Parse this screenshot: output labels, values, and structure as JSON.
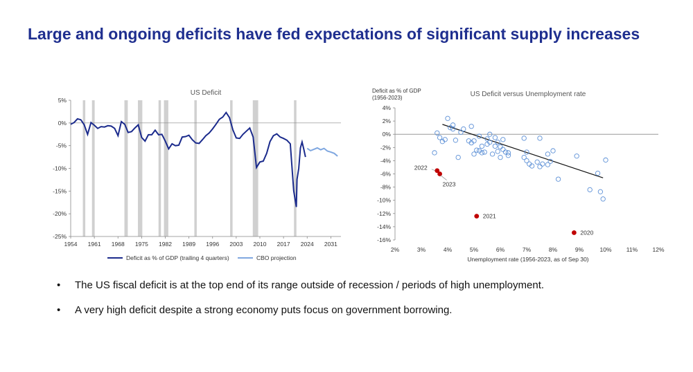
{
  "slide": {
    "title": "Large and ongoing deficits have fed expectations of significant supply increases",
    "bullets": [
      "The US fiscal deficit is at the top end of its range outside of recession / periods of high unemployment.",
      "A very high deficit despite a strong economy puts focus on government borrowing."
    ],
    "bullet_glyph": "•"
  },
  "colors": {
    "title": "#1f2f8f",
    "deficit": "#1a2a8c",
    "projection": "#7fa7e0",
    "recession": "#d0d0d0",
    "scatter": "#5b8fd6",
    "highlight": "#c00000"
  },
  "chart_data": [
    {
      "type": "line",
      "title": "US Deficit",
      "ylabel": "",
      "xlabel": "",
      "xlim": [
        1954,
        2034
      ],
      "ylim": [
        -25,
        5
      ],
      "x_ticks": [
        1954,
        1961,
        1968,
        1975,
        1982,
        1989,
        1996,
        2003,
        2010,
        2017,
        2024,
        2031
      ],
      "x_tick_labels": [
        "1954",
        "1961",
        "1968",
        "1975",
        "1982",
        "1989",
        "1996",
        "2003",
        "2010",
        "2017",
        "2024",
        "2031"
      ],
      "y_ticks": [
        5,
        0,
        -5,
        -10,
        -15,
        -20,
        -25
      ],
      "y_tick_labels": [
        "5%",
        "0%",
        "-5%",
        "-10%",
        "-15%",
        "-20%",
        "-25%"
      ],
      "recessions": [
        [
          1957.6,
          1958.3
        ],
        [
          1960.3,
          1961.1
        ],
        [
          1969.9,
          1970.9
        ],
        [
          1973.9,
          1975.2
        ],
        [
          1980.0,
          1980.6
        ],
        [
          1981.6,
          1982.9
        ],
        [
          1990.6,
          1991.2
        ],
        [
          2001.2,
          2001.9
        ],
        [
          2007.9,
          2009.5
        ],
        [
          2020.1,
          2020.5
        ]
      ],
      "legend_position": "bottom",
      "series": [
        {
          "name": "Deficit as % of GDP (trailing 4 quarters)",
          "style": "solid",
          "points": [
            [
              1954,
              -0.3
            ],
            [
              1955,
              0.1
            ],
            [
              1956,
              0.9
            ],
            [
              1957,
              0.7
            ],
            [
              1958,
              -0.4
            ],
            [
              1959,
              -2.5
            ],
            [
              1960,
              0.1
            ],
            [
              1961,
              -0.5
            ],
            [
              1962,
              -1.2
            ],
            [
              1963,
              -0.8
            ],
            [
              1964,
              -0.9
            ],
            [
              1965,
              -0.6
            ],
            [
              1966,
              -0.7
            ],
            [
              1967,
              -1.2
            ],
            [
              1968,
              -2.8
            ],
            [
              1969,
              0.3
            ],
            [
              1970,
              -0.3
            ],
            [
              1971,
              -2.1
            ],
            [
              1972,
              -1.9
            ],
            [
              1973,
              -1.1
            ],
            [
              1974,
              -0.4
            ],
            [
              1975,
              -3.2
            ],
            [
              1976,
              -4.0
            ],
            [
              1977,
              -2.6
            ],
            [
              1978,
              -2.6
            ],
            [
              1979,
              -1.6
            ],
            [
              1980,
              -2.6
            ],
            [
              1981,
              -2.5
            ],
            [
              1982,
              -4.0
            ],
            [
              1983,
              -5.7
            ],
            [
              1984,
              -4.6
            ],
            [
              1985,
              -5.0
            ],
            [
              1986,
              -4.9
            ],
            [
              1987,
              -3.1
            ],
            [
              1988,
              -3.0
            ],
            [
              1989,
              -2.7
            ],
            [
              1990,
              -3.7
            ],
            [
              1991,
              -4.4
            ],
            [
              1992,
              -4.5
            ],
            [
              1993,
              -3.7
            ],
            [
              1994,
              -2.8
            ],
            [
              1995,
              -2.2
            ],
            [
              1996,
              -1.3
            ],
            [
              1997,
              -0.3
            ],
            [
              1998,
              0.8
            ],
            [
              1999,
              1.3
            ],
            [
              2000,
              2.3
            ],
            [
              2001,
              1.2
            ],
            [
              2002,
              -1.5
            ],
            [
              2003,
              -3.3
            ],
            [
              2004,
              -3.4
            ],
            [
              2005,
              -2.5
            ],
            [
              2006,
              -1.8
            ],
            [
              2007,
              -1.1
            ],
            [
              2008,
              -3.1
            ],
            [
              2009,
              -9.8
            ],
            [
              2010,
              -8.6
            ],
            [
              2011,
              -8.4
            ],
            [
              2012,
              -6.7
            ],
            [
              2013,
              -4.1
            ],
            [
              2014,
              -2.8
            ],
            [
              2015,
              -2.4
            ],
            [
              2016,
              -3.1
            ],
            [
              2017,
              -3.4
            ],
            [
              2018,
              -3.8
            ],
            [
              2019,
              -4.6
            ],
            [
              2020,
              -14.9
            ],
            [
              2020.8,
              -18.5
            ],
            [
              2021,
              -12.4
            ],
            [
              2021.5,
              -10.0
            ],
            [
              2022,
              -5.5
            ],
            [
              2022.5,
              -4.2
            ],
            [
              2023,
              -5.8
            ],
            [
              2023.5,
              -7.5
            ]
          ]
        },
        {
          "name": "CBO projection",
          "style": "solid",
          "points": [
            [
              2024,
              -5.6
            ],
            [
              2025,
              -6.1
            ],
            [
              2026,
              -5.8
            ],
            [
              2027,
              -5.5
            ],
            [
              2028,
              -5.9
            ],
            [
              2029,
              -5.6
            ],
            [
              2030,
              -6.2
            ],
            [
              2031,
              -6.4
            ],
            [
              2032,
              -6.7
            ],
            [
              2033,
              -7.3
            ]
          ]
        }
      ]
    },
    {
      "type": "scatter",
      "title": "US Deficit versus Unemployment rate",
      "ylabel": "Deficit as % of GDP\n(1956-2023)",
      "xlabel": "Unemployment rate (1956-2023, as of Sep 30)",
      "xlim": [
        2,
        12
      ],
      "ylim": [
        -16,
        4
      ],
      "x_ticks": [
        2,
        3,
        4,
        5,
        6,
        7,
        8,
        9,
        10,
        11,
        12
      ],
      "x_tick_labels": [
        "2%",
        "3%",
        "4%",
        "5%",
        "6%",
        "7%",
        "8%",
        "9%",
        "10%",
        "11%",
        "12%"
      ],
      "y_ticks": [
        4,
        2,
        0,
        -2,
        -4,
        -6,
        -8,
        -10,
        -12,
        -14,
        -16
      ],
      "y_tick_labels": [
        "4%",
        "2%",
        "0%",
        "-2%",
        "-4%",
        "-6%",
        "-8%",
        "-10%",
        "-12%",
        "-14%",
        "-16%"
      ],
      "trendline": [
        [
          3.8,
          1.5
        ],
        [
          9.9,
          -6.6
        ]
      ],
      "points": [
        [
          3.5,
          -2.8
        ],
        [
          3.6,
          0.2
        ],
        [
          3.7,
          -0.5
        ],
        [
          3.8,
          -1.1
        ],
        [
          3.9,
          -0.8
        ],
        [
          4.0,
          2.4
        ],
        [
          4.1,
          1.0
        ],
        [
          4.2,
          1.4
        ],
        [
          4.2,
          0.8
        ],
        [
          4.3,
          -0.9
        ],
        [
          4.4,
          -3.5
        ],
        [
          4.5,
          0.3
        ],
        [
          4.6,
          0.8
        ],
        [
          4.8,
          -1.0
        ],
        [
          4.9,
          -1.3
        ],
        [
          4.9,
          1.2
        ],
        [
          5.0,
          -3.0
        ],
        [
          5.0,
          -1.0
        ],
        [
          5.1,
          -2.4
        ],
        [
          5.2,
          -2.5
        ],
        [
          5.2,
          -0.3
        ],
        [
          5.3,
          -1.8
        ],
        [
          5.3,
          -2.8
        ],
        [
          5.4,
          -2.7
        ],
        [
          5.5,
          -1.5
        ],
        [
          5.5,
          -0.7
        ],
        [
          5.6,
          -1.2
        ],
        [
          5.6,
          0.0
        ],
        [
          5.7,
          -3.0
        ],
        [
          5.8,
          -1.8
        ],
        [
          5.8,
          -0.5
        ],
        [
          5.9,
          -1.2
        ],
        [
          5.9,
          -2.6
        ],
        [
          6.0,
          -3.5
        ],
        [
          6.0,
          -1.9
        ],
        [
          6.1,
          -0.8
        ],
        [
          6.1,
          -2.3
        ],
        [
          6.2,
          -2.7
        ],
        [
          6.3,
          -2.8
        ],
        [
          6.3,
          -3.2
        ],
        [
          6.9,
          -3.5
        ],
        [
          6.9,
          -0.6
        ],
        [
          7.0,
          -4.0
        ],
        [
          7.0,
          -2.7
        ],
        [
          7.1,
          -4.5
        ],
        [
          7.2,
          -4.8
        ],
        [
          7.4,
          -4.2
        ],
        [
          7.5,
          -0.6
        ],
        [
          7.5,
          -4.9
        ],
        [
          7.6,
          -4.5
        ],
        [
          7.8,
          -4.6
        ],
        [
          7.8,
          -3.0
        ],
        [
          7.9,
          -4.1
        ],
        [
          8.0,
          -2.5
        ],
        [
          8.2,
          -6.8
        ],
        [
          8.9,
          -3.3
        ],
        [
          9.4,
          -8.4
        ],
        [
          9.7,
          -5.9
        ],
        [
          9.8,
          -8.7
        ],
        [
          9.9,
          -9.8
        ],
        [
          10.0,
          -3.9
        ]
      ],
      "highlighted": [
        {
          "label": "2022",
          "x": 3.6,
          "y": -5.5
        },
        {
          "label": "2023",
          "x": 3.7,
          "y": -6.0
        },
        {
          "label": "2021",
          "x": 5.1,
          "y": -12.4
        },
        {
          "label": "2020",
          "x": 8.8,
          "y": -14.9
        }
      ]
    }
  ]
}
